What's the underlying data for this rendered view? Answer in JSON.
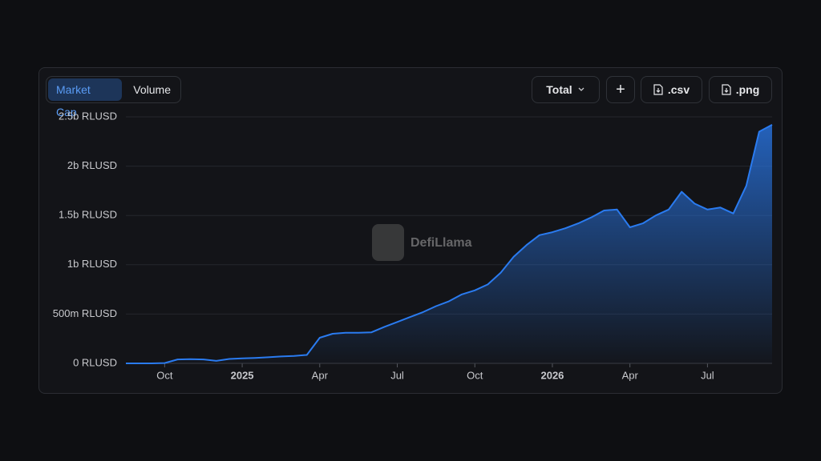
{
  "tabs": [
    "Market Cap",
    "Volume"
  ],
  "buttons": {
    "total": "Total",
    "add": "+",
    "csv": ".csv",
    "png": ".png"
  },
  "watermark": "DefiLlama",
  "chart_data": {
    "type": "area",
    "color": "#2a7bf0",
    "grid": true,
    "categories": [
      null,
      null,
      null,
      "Oct",
      null,
      null,
      null,
      null,
      null,
      "2025",
      null,
      null,
      null,
      null,
      null,
      "Apr",
      null,
      null,
      null,
      null,
      null,
      "Jul",
      null,
      null,
      null,
      null,
      null,
      "Oct",
      null,
      null,
      null,
      null,
      null,
      "2026",
      null,
      null,
      null,
      null,
      null,
      "Apr",
      null,
      null,
      null,
      null,
      null,
      "Jul",
      null,
      null,
      null,
      null,
      null
    ],
    "values": [
      0,
      0,
      0,
      3000000,
      40000000,
      42000000,
      40000000,
      25000000,
      45000000,
      50000000,
      55000000,
      62000000,
      70000000,
      75000000,
      85000000,
      260000000,
      300000000,
      310000000,
      310000000,
      315000000,
      370000000,
      420000000,
      470000000,
      520000000,
      580000000,
      630000000,
      700000000,
      740000000,
      800000000,
      920000000,
      1080000000,
      1200000000,
      1300000000,
      1330000000,
      1370000000,
      1420000000,
      1480000000,
      1550000000,
      1560000000,
      1380000000,
      1420000000,
      1500000000,
      1560000000,
      1740000000,
      1620000000,
      1560000000,
      1580000000,
      1520000000,
      1800000000,
      2350000000,
      2420000000
    ],
    "ylim": [
      0,
      2500000000
    ],
    "yticks": [
      {
        "value": 0,
        "label": "0 RLUSD"
      },
      {
        "value": 500000000,
        "label": "500m RLUSD"
      },
      {
        "value": 1000000000,
        "label": "1b RLUSD"
      },
      {
        "value": 1500000000,
        "label": "1.5b RLUSD"
      },
      {
        "value": 2000000000,
        "label": "2b RLUSD"
      },
      {
        "value": 2500000000,
        "label": "2.5b RLUSD"
      }
    ]
  }
}
